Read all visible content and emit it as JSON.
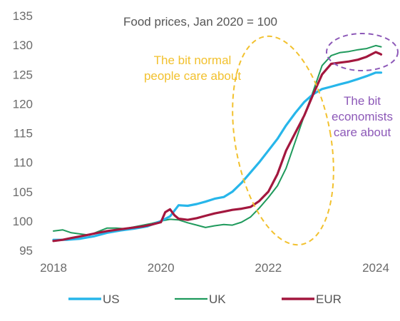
{
  "chart_data": {
    "type": "line",
    "title": "Food prices, Jan 2020 = 100",
    "xlabel": "",
    "ylabel": "",
    "xlim": [
      2018,
      2024.3
    ],
    "ylim": [
      95,
      135
    ],
    "x_ticks": [
      "2018",
      "2020",
      "2022",
      "2024"
    ],
    "y_ticks": [
      "95",
      "100",
      "105",
      "110",
      "115",
      "120",
      "125",
      "130",
      "135"
    ],
    "legend_position": "bottom",
    "annotations": [
      {
        "lines": [
          "The bit normal",
          "people care about"
        ],
        "color": "#f2c12e"
      },
      {
        "lines": [
          "The bit",
          "economists",
          "care about"
        ],
        "color": "#8d59b8"
      }
    ],
    "series": [
      {
        "name": "US",
        "color": "#27b6ea",
        "x": [
          2018.0,
          2018.25,
          2018.5,
          2018.75,
          2019.0,
          2019.25,
          2019.5,
          2019.75,
          2020.0,
          2020.17,
          2020.33,
          2020.5,
          2020.67,
          2020.83,
          2021.0,
          2021.17,
          2021.33,
          2021.5,
          2021.67,
          2021.83,
          2022.0,
          2022.17,
          2022.33,
          2022.5,
          2022.67,
          2022.83,
          2023.0,
          2023.17,
          2023.33,
          2023.5,
          2023.67,
          2023.83,
          2024.0,
          2024.1
        ],
        "y": [
          96.8,
          96.8,
          97.0,
          97.4,
          98.0,
          98.4,
          98.7,
          99.1,
          100.0,
          100.8,
          102.7,
          102.6,
          102.9,
          103.3,
          103.8,
          104.1,
          105.0,
          106.5,
          108.3,
          110.0,
          112.0,
          114.0,
          116.3,
          118.4,
          120.3,
          121.6,
          122.5,
          122.9,
          123.3,
          123.7,
          124.2,
          124.7,
          125.3,
          125.3
        ]
      },
      {
        "name": "UK",
        "color": "#1f9a5c",
        "x": [
          2018.0,
          2018.17,
          2018.33,
          2018.5,
          2018.67,
          2018.83,
          2019.0,
          2019.17,
          2019.33,
          2019.5,
          2019.67,
          2019.83,
          2020.0,
          2020.17,
          2020.33,
          2020.5,
          2020.67,
          2020.83,
          2021.0,
          2021.17,
          2021.33,
          2021.5,
          2021.67,
          2021.83,
          2022.0,
          2022.17,
          2022.33,
          2022.5,
          2022.67,
          2022.83,
          2023.0,
          2023.17,
          2023.33,
          2023.5,
          2023.67,
          2023.83,
          2024.0,
          2024.1
        ],
        "y": [
          98.3,
          98.5,
          98.0,
          97.8,
          97.6,
          98.2,
          98.8,
          98.8,
          98.7,
          99.0,
          99.3,
          99.6,
          100.0,
          100.3,
          100.2,
          99.7,
          99.3,
          98.9,
          99.2,
          99.4,
          99.3,
          99.8,
          100.7,
          102.2,
          104.0,
          106.0,
          109.0,
          113.5,
          118.0,
          122.0,
          126.5,
          128.2,
          128.7,
          128.9,
          129.2,
          129.4,
          129.9,
          129.7
        ]
      },
      {
        "name": "EUR",
        "color": "#a3173e",
        "x": [
          2018.0,
          2018.17,
          2018.33,
          2018.5,
          2018.67,
          2018.83,
          2019.0,
          2019.17,
          2019.33,
          2019.5,
          2019.67,
          2019.83,
          2020.0,
          2020.08,
          2020.17,
          2020.25,
          2020.33,
          2020.5,
          2020.67,
          2020.83,
          2021.0,
          2021.17,
          2021.33,
          2021.5,
          2021.67,
          2021.83,
          2022.0,
          2022.17,
          2022.33,
          2022.5,
          2022.67,
          2022.83,
          2023.0,
          2023.17,
          2023.33,
          2023.5,
          2023.67,
          2023.83,
          2024.0,
          2024.08,
          2024.1
        ],
        "y": [
          96.6,
          96.8,
          97.1,
          97.4,
          97.7,
          98.0,
          98.3,
          98.5,
          98.7,
          98.9,
          99.1,
          99.4,
          99.8,
          101.5,
          102.0,
          101.0,
          100.4,
          100.2,
          100.5,
          100.9,
          101.3,
          101.6,
          101.9,
          102.1,
          102.4,
          103.4,
          105.0,
          108.0,
          112.0,
          115.0,
          118.0,
          121.5,
          125.0,
          126.8,
          127.0,
          127.2,
          127.5,
          128.0,
          128.8,
          128.5,
          128.4
        ]
      }
    ]
  }
}
